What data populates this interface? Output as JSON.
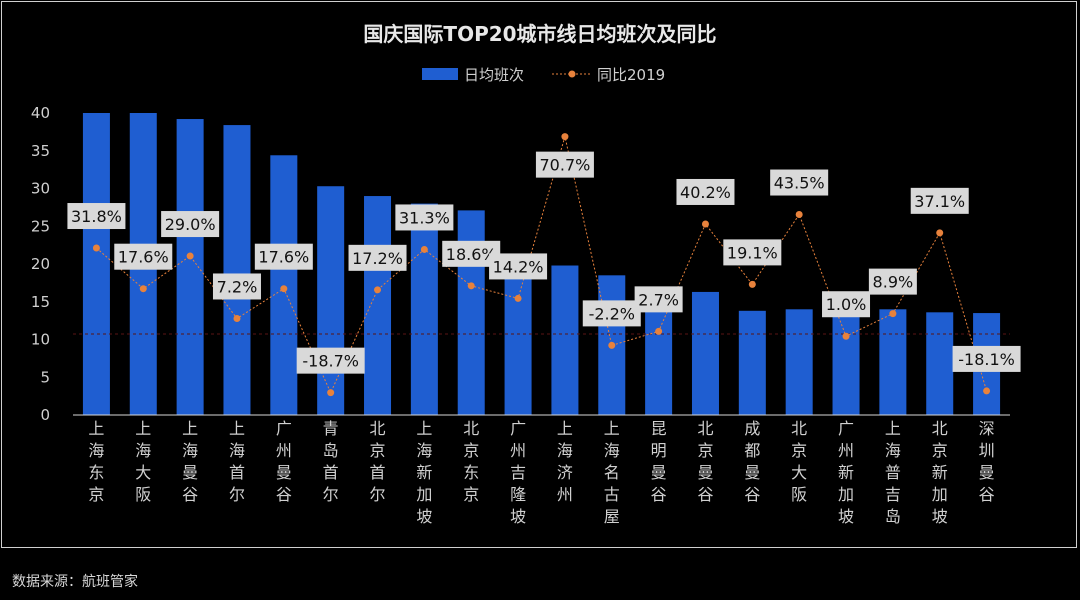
{
  "source_note": "数据来源：航班管家",
  "colors": {
    "background": "#000000",
    "bar": "#1f5ed1",
    "line": "#e8823c",
    "axis_text": "#d0d0d0",
    "title": "#e8e8e8",
    "label_box": "#d9d9d9",
    "label_text": "#111111"
  },
  "chart_data": {
    "type": "bar",
    "title": "国庆国际TOP20城市线日均班次及同比",
    "categories": [
      "上海东京",
      "上海大阪",
      "上海曼谷",
      "上海首尔",
      "广州曼谷",
      "青岛首尔",
      "北京首尔",
      "上海新加坡",
      "北京东京",
      "广州吉隆坡",
      "上海济州",
      "上海名古屋",
      "昆明曼谷",
      "北京曼谷",
      "成都曼谷",
      "北京大阪",
      "广州新加坡",
      "上海普吉岛",
      "北京新加坡",
      "深圳曼谷"
    ],
    "ylim": [
      0,
      40
    ],
    "yticks": [
      0,
      5,
      10,
      15,
      20,
      25,
      30,
      35,
      40
    ],
    "legend_position": "top",
    "series": [
      {
        "name": "日均班次",
        "type": "bar",
        "values": [
          40.0,
          40.0,
          39.2,
          38.4,
          34.4,
          30.3,
          29.0,
          28.0,
          27.1,
          20.6,
          19.8,
          18.5,
          15.3,
          16.3,
          13.8,
          14.0,
          14.0,
          14.0,
          13.6,
          13.5
        ]
      },
      {
        "name": "同比2019",
        "type": "line",
        "values": [
          31.8,
          17.6,
          29.0,
          7.2,
          17.6,
          -18.7,
          17.2,
          31.3,
          18.6,
          14.2,
          70.7,
          -2.2,
          2.7,
          40.2,
          19.1,
          43.5,
          1.0,
          8.9,
          37.1,
          -18.1
        ],
        "unit": "%",
        "labels": [
          "31.8%",
          "17.6%",
          "29.0%",
          "7.2%",
          "17.6%",
          "-18.7%",
          "17.2%",
          "31.3%",
          "18.6%",
          "14.2%",
          "70.7%",
          "-2.2%",
          "2.7%",
          "40.2%",
          "19.1%",
          "43.5%",
          "1.0%",
          "8.9%",
          "37.1%",
          "-18.1%"
        ]
      }
    ]
  }
}
